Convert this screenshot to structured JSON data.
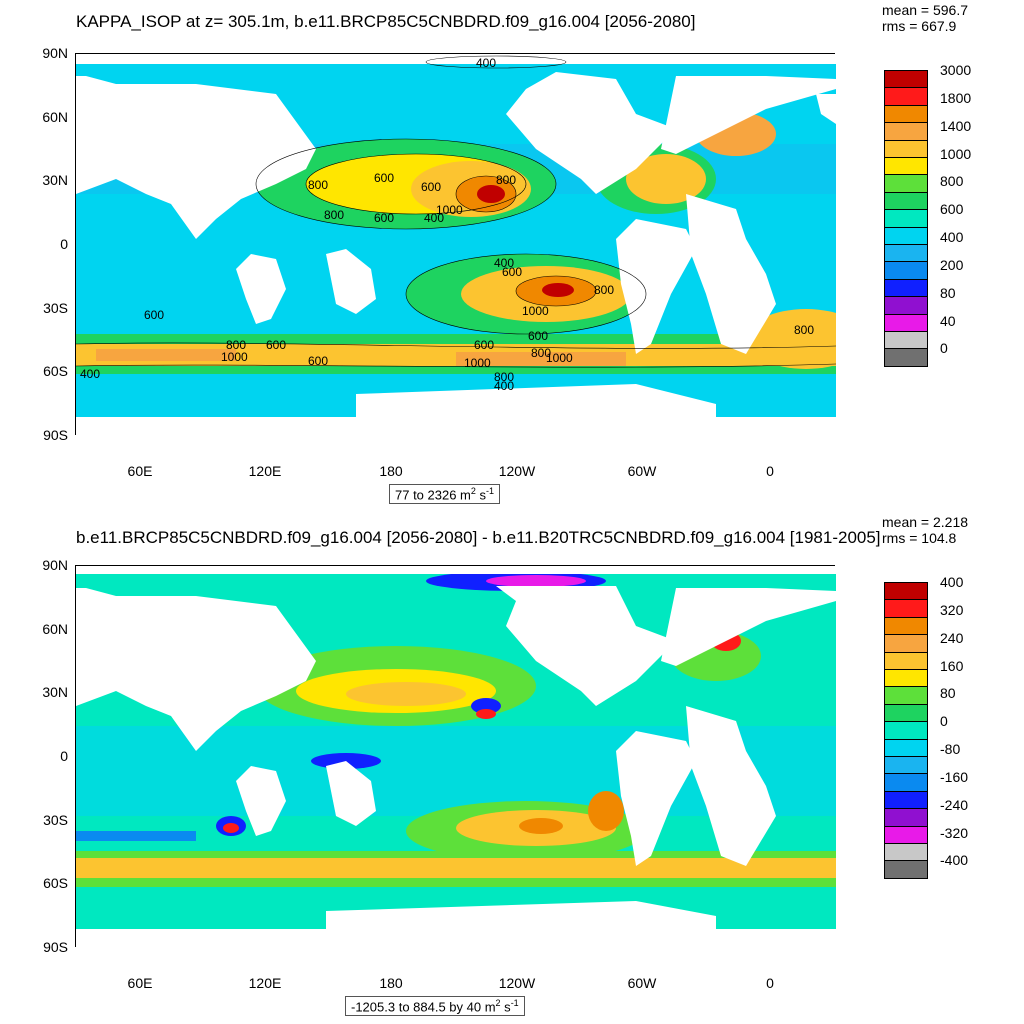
{
  "panels": [
    {
      "title": "KAPPA_ISOP at z= 305.1m, b.e11.BRCP85C5CNBDRD.f09_g16.004 [2056-2080]",
      "stats": {
        "mean": "mean = 596.7",
        "rms": "rms = 667.9"
      },
      "range_label": "77 to 2326 m",
      "units_suffix": {
        "m_exp": "2",
        "s": " s",
        "s_exp": "-1"
      },
      "colorbar": {
        "labels": [
          "3000",
          "1800",
          "1400",
          "1000",
          "800",
          "600",
          "400",
          "200",
          "80",
          "40",
          "0"
        ],
        "colors": [
          "#c00000",
          "#ff1a1a",
          "#f08800",
          "#f7a540",
          "#fcc430",
          "#ffe600",
          "#5de03a",
          "#1ed360",
          "#00e8c0",
          "#00d4f0",
          "#1ab4f0",
          "#0a8af0",
          "#1020ff",
          "#9010d0",
          "#e81ae8",
          "#c8c8c8",
          "#707070"
        ]
      }
    },
    {
      "title": "b.e11.BRCP85C5CNBDRD.f09_g16.004 [2056-2080] - b.e11.B20TRC5CNBDRD.f09_g16.004 [1981-2005]",
      "stats": {
        "mean": "mean = 2.218",
        "rms": "rms = 104.8"
      },
      "range_label": "-1205.3 to 884.5 by 40 m",
      "units_suffix": {
        "m_exp": "2",
        "s": " s",
        "s_exp": "-1"
      },
      "colorbar": {
        "labels": [
          "400",
          "320",
          "240",
          "160",
          "80",
          "0",
          "-80",
          "-160",
          "-240",
          "-320",
          "-400"
        ],
        "colors": [
          "#c00000",
          "#ff1a1a",
          "#f08800",
          "#f7a540",
          "#fcc430",
          "#ffe600",
          "#5de03a",
          "#1ed360",
          "#00e8c0",
          "#00d4f0",
          "#1ab4f0",
          "#0a8af0",
          "#1020ff",
          "#9010d0",
          "#e81ae8",
          "#c8c8c8",
          "#707070"
        ]
      }
    }
  ],
  "axes": {
    "lat_labels": [
      "90N",
      "60N",
      "30N",
      "0",
      "30S",
      "60S",
      "90S"
    ],
    "lon_labels": [
      "60E",
      "120E",
      "180",
      "120W",
      "60W",
      "0"
    ]
  },
  "contour_labels": [
    "400",
    "800",
    "600",
    "600",
    "800",
    "800",
    "600",
    "400",
    "1000",
    "400",
    "600",
    "800",
    "600",
    "1000",
    "600",
    "800",
    "600",
    "1000",
    "600",
    "800",
    "1000",
    "1000",
    "800",
    "400",
    "400",
    "600",
    "800"
  ]
}
